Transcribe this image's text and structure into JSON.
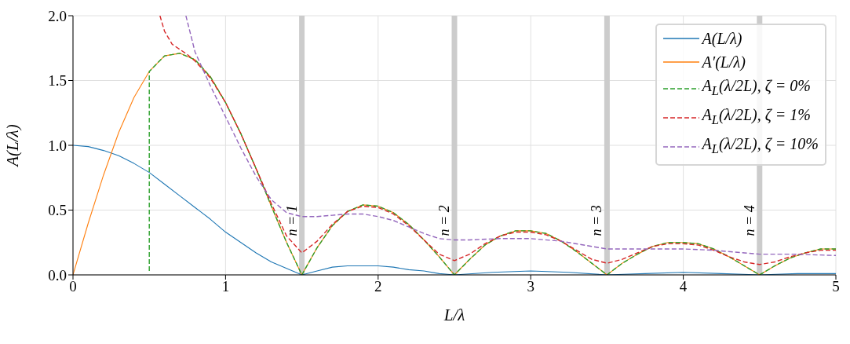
{
  "chart_data": {
    "type": "line",
    "xlabel": "L/λ",
    "ylabel": "A(L/λ)",
    "xlim": [
      0,
      5
    ],
    "xticks": [
      0,
      1,
      2,
      3,
      4,
      5
    ],
    "ylim": [
      0,
      2
    ],
    "yticks": [
      {
        "value": 0,
        "label": "0.0"
      },
      {
        "value": 0.5,
        "label": "0.5"
      },
      {
        "value": 1,
        "label": "1.0"
      },
      {
        "value": 1.5,
        "label": "1.5"
      },
      {
        "value": 2,
        "label": "2.0"
      }
    ],
    "grid": true,
    "legend": "top right",
    "marker": "none",
    "ref_lines": [
      {
        "axis": "x",
        "value": 1.5,
        "label": "n = 1",
        "color": "#cccccc"
      },
      {
        "axis": "x",
        "value": 2.5,
        "label": "n = 2",
        "color": "#cccccc"
      },
      {
        "axis": "x",
        "value": 3.5,
        "label": "n = 3",
        "color": "#cccccc"
      },
      {
        "axis": "x",
        "value": 4.5,
        "label": "n = 4",
        "color": "#cccccc"
      }
    ],
    "series": [
      {
        "name": "A(L/λ)",
        "color": "#1f77b4",
        "line_style": "solid",
        "x": [
          0,
          0.1,
          0.2,
          0.3,
          0.4,
          0.5,
          0.6,
          0.7,
          0.8,
          0.9,
          1.0,
          1.1,
          1.2,
          1.3,
          1.4,
          1.5,
          1.6,
          1.7,
          1.8,
          1.9,
          2.0,
          2.1,
          2.2,
          2.3,
          2.4,
          2.5,
          2.75,
          3.0,
          3.25,
          3.5,
          3.75,
          4.0,
          4.25,
          4.5,
          4.75,
          5.0
        ],
        "values": [
          1,
          0.99,
          0.96,
          0.92,
          0.86,
          0.79,
          0.7,
          0.61,
          0.52,
          0.43,
          0.33,
          0.25,
          0.17,
          0.1,
          0.05,
          0,
          0.03,
          0.06,
          0.07,
          0.07,
          0.07,
          0.06,
          0.04,
          0.03,
          0.01,
          0,
          0.02,
          0.03,
          0.02,
          0,
          0.01,
          0.02,
          0.01,
          0,
          0.01,
          0.01
        ]
      },
      {
        "name": "A′(L/λ)",
        "color": "#ff7f0e",
        "line_style": "solid",
        "x": [
          0,
          0.1,
          0.2,
          0.3,
          0.4,
          0.5,
          0.6,
          0.7,
          0.8,
          0.9,
          1.0,
          1.1,
          1.2,
          1.3,
          1.4,
          1.5,
          1.6,
          1.7,
          1.8,
          1.9,
          2.0,
          2.1,
          2.2,
          2.3,
          2.4,
          2.5,
          2.6,
          2.7,
          2.8,
          2.9,
          3.0,
          3.1,
          3.2,
          3.3,
          3.4,
          3.5,
          3.6,
          3.7,
          3.8,
          3.9,
          4.0,
          4.1,
          4.2,
          4.3,
          4.4,
          4.5,
          4.6,
          4.7,
          4.8,
          4.9,
          5.0
        ],
        "values": [
          0,
          0.4,
          0.77,
          1.1,
          1.37,
          1.57,
          1.69,
          1.71,
          1.66,
          1.53,
          1.33,
          1.09,
          0.82,
          0.53,
          0.25,
          0,
          0.21,
          0.38,
          0.49,
          0.54,
          0.53,
          0.48,
          0.39,
          0.27,
          0.14,
          0,
          0.12,
          0.23,
          0.3,
          0.34,
          0.34,
          0.32,
          0.26,
          0.18,
          0.09,
          0,
          0.09,
          0.16,
          0.22,
          0.25,
          0.25,
          0.24,
          0.2,
          0.14,
          0.07,
          0,
          0.07,
          0.13,
          0.17,
          0.2,
          0.2
        ]
      },
      {
        "name": "A$_{L}$(λ/2L), ζ = 0%",
        "color": "#2ca02c",
        "line_style": "dashed",
        "x": [
          0.5,
          0.5,
          0.6,
          0.7,
          0.8,
          0.9,
          1.0,
          1.1,
          1.2,
          1.3,
          1.4,
          1.5,
          1.6,
          1.7,
          1.8,
          1.9,
          2.0,
          2.1,
          2.2,
          2.3,
          2.4,
          2.5,
          2.6,
          2.7,
          2.8,
          2.9,
          3.0,
          3.1,
          3.2,
          3.3,
          3.4,
          3.5,
          3.6,
          3.7,
          3.8,
          3.9,
          4.0,
          4.1,
          4.2,
          4.3,
          4.4,
          4.5,
          4.6,
          4.7,
          4.8,
          4.9,
          5.0
        ],
        "values": [
          0.03,
          1.57,
          1.69,
          1.71,
          1.66,
          1.53,
          1.33,
          1.09,
          0.82,
          0.53,
          0.25,
          0,
          0.21,
          0.38,
          0.49,
          0.54,
          0.53,
          0.48,
          0.39,
          0.27,
          0.14,
          0,
          0.12,
          0.23,
          0.3,
          0.34,
          0.34,
          0.32,
          0.26,
          0.18,
          0.09,
          0,
          0.09,
          0.16,
          0.22,
          0.25,
          0.25,
          0.24,
          0.2,
          0.14,
          0.07,
          0,
          0.07,
          0.13,
          0.17,
          0.2,
          0.2
        ]
      },
      {
        "name": "A$_{L}$(λ/2L), ζ = 1%",
        "color": "#d62728",
        "line_style": "dashed",
        "x": [
          0.57,
          0.6,
          0.65,
          0.7,
          0.75,
          0.8,
          0.9,
          1.0,
          1.1,
          1.2,
          1.3,
          1.4,
          1.5,
          1.6,
          1.7,
          1.8,
          1.9,
          2.0,
          2.1,
          2.2,
          2.3,
          2.4,
          2.5,
          2.6,
          2.7,
          2.8,
          2.9,
          3.0,
          3.1,
          3.2,
          3.3,
          3.4,
          3.5,
          3.6,
          3.7,
          3.8,
          3.9,
          4.0,
          4.1,
          4.2,
          4.3,
          4.4,
          4.5,
          4.6,
          4.7,
          4.8,
          4.9,
          5.0
        ],
        "values": [
          2.0,
          1.88,
          1.78,
          1.74,
          1.7,
          1.65,
          1.52,
          1.33,
          1.09,
          0.82,
          0.55,
          0.3,
          0.17,
          0.26,
          0.39,
          0.49,
          0.53,
          0.52,
          0.47,
          0.38,
          0.27,
          0.16,
          0.11,
          0.16,
          0.24,
          0.3,
          0.33,
          0.33,
          0.31,
          0.26,
          0.19,
          0.12,
          0.09,
          0.12,
          0.17,
          0.22,
          0.24,
          0.24,
          0.23,
          0.19,
          0.14,
          0.1,
          0.08,
          0.1,
          0.14,
          0.17,
          0.19,
          0.19
        ]
      },
      {
        "name": "A$_{L}$(λ/2L), ζ = 10%",
        "color": "#9467bd",
        "line_style": "dashed",
        "x": [
          0.74,
          0.8,
          0.9,
          1.0,
          1.1,
          1.2,
          1.3,
          1.4,
          1.5,
          1.6,
          1.7,
          1.8,
          1.9,
          2.0,
          2.1,
          2.2,
          2.3,
          2.4,
          2.5,
          2.6,
          2.8,
          3.0,
          3.2,
          3.4,
          3.5,
          3.7,
          4.0,
          4.2,
          4.4,
          4.5,
          4.7,
          5.0
        ],
        "values": [
          2.0,
          1.72,
          1.46,
          1.22,
          0.98,
          0.76,
          0.58,
          0.48,
          0.45,
          0.45,
          0.46,
          0.47,
          0.47,
          0.45,
          0.42,
          0.37,
          0.32,
          0.28,
          0.27,
          0.27,
          0.28,
          0.28,
          0.26,
          0.22,
          0.2,
          0.2,
          0.2,
          0.19,
          0.17,
          0.16,
          0.16,
          0.15
        ]
      }
    ]
  }
}
